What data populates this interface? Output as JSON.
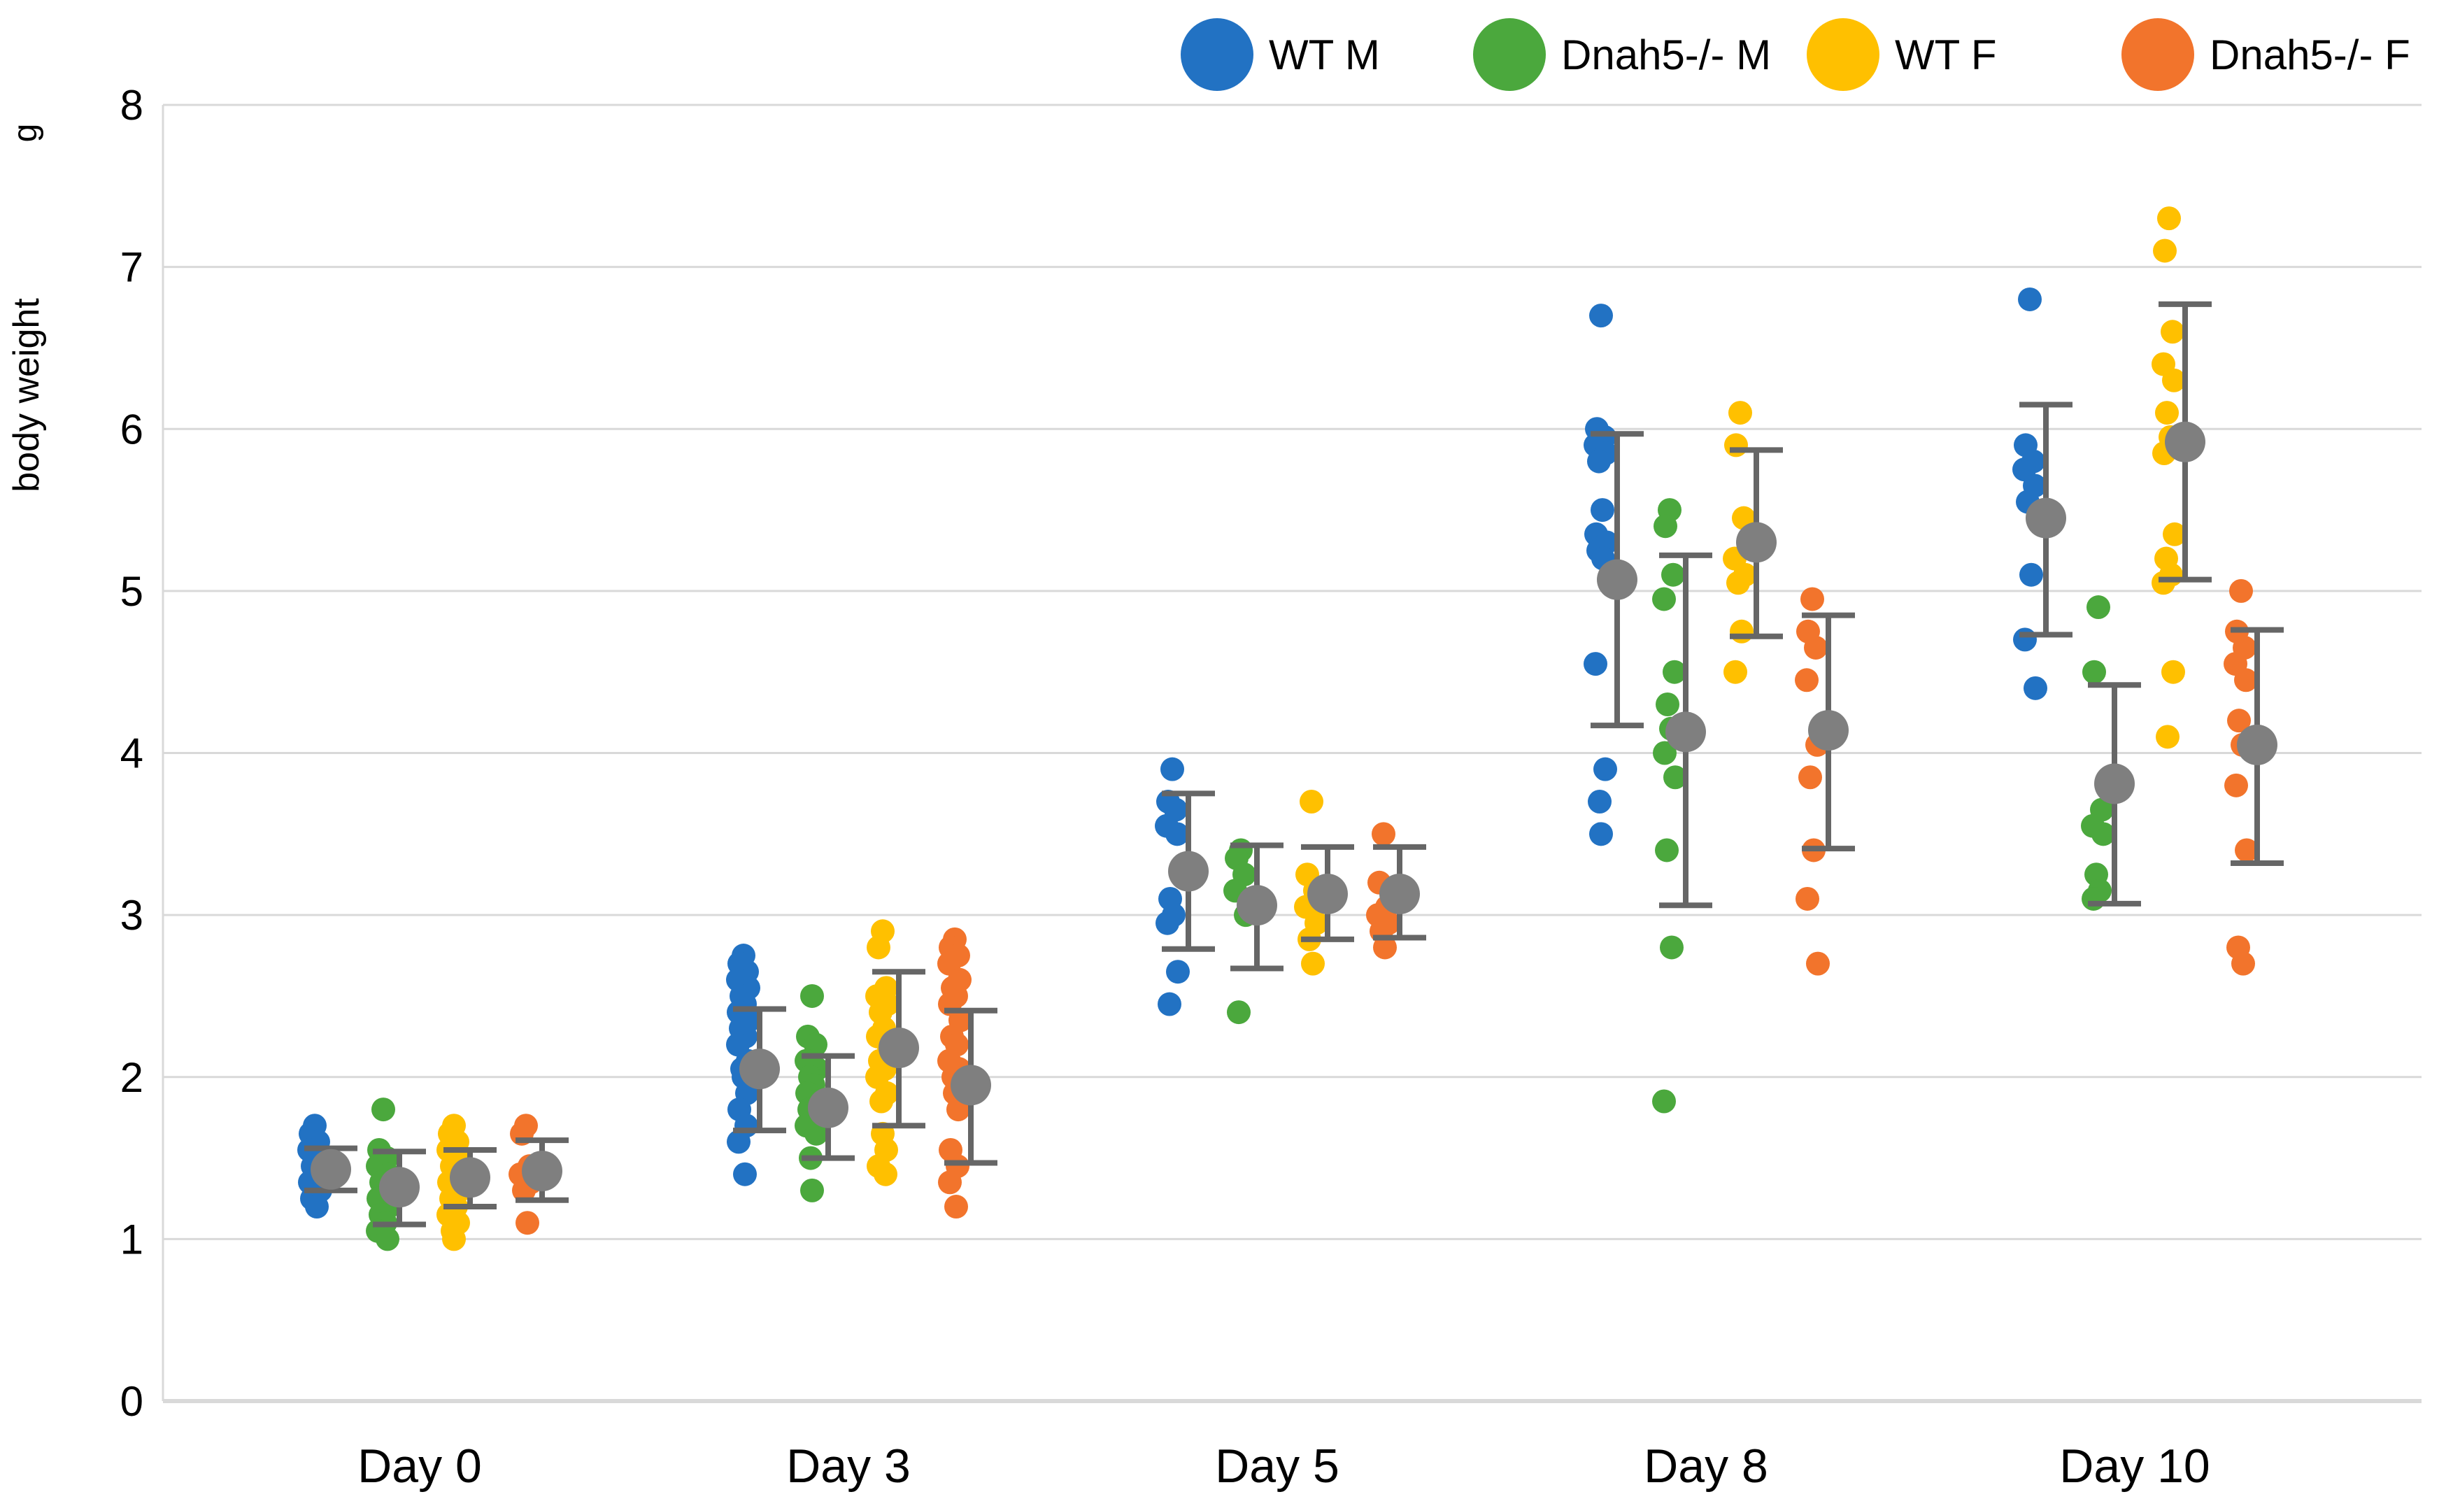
{
  "figure": {
    "y_unit": "g",
    "y_axis_title": "body weight"
  },
  "legend": {
    "items": [
      {
        "label": "WT M",
        "color": "#2272C3"
      },
      {
        "label": "Dnah5-/- M",
        "color": "#4BA83D"
      },
      {
        "label": "WT F",
        "color": "#FFC000"
      },
      {
        "label": "Dnah5-/- F",
        "color": "#F2742C"
      }
    ]
  },
  "chart_data": {
    "type": "scatter",
    "title": "",
    "xlabel": "",
    "ylabel": "body weight",
    "y_unit": "g",
    "ylim": [
      0,
      8
    ],
    "y_ticks": [
      0,
      1,
      2,
      3,
      4,
      5,
      6,
      7,
      8
    ],
    "grid": true,
    "legend_position": "top",
    "categories": [
      "Day 0",
      "Day 3",
      "Day 5",
      "Day 8",
      "Day 10"
    ],
    "mean_marker_color": "#7F7F7F",
    "error_bar_color": "#666666",
    "gridline_color": "#D9D9D9",
    "series": [
      {
        "name": "WT M",
        "color": "#2272C3",
        "points": [
          [
            1.7,
            1.65,
            1.6,
            1.55,
            1.5,
            1.45,
            1.4,
            1.35,
            1.3,
            1.25,
            1.2
          ],
          [
            2.75,
            2.7,
            2.65,
            2.6,
            2.55,
            2.5,
            2.45,
            2.4,
            2.35,
            2.3,
            2.25,
            2.2,
            2.1,
            2.05,
            2.0,
            1.9,
            1.8,
            1.7,
            1.6,
            1.4
          ],
          [
            3.9,
            3.7,
            3.65,
            3.55,
            3.5,
            3.1,
            3.0,
            2.95,
            2.65,
            2.45
          ],
          [
            6.7,
            6.0,
            5.95,
            5.9,
            5.85,
            5.8,
            5.5,
            5.35,
            5.3,
            5.25,
            5.2,
            4.55,
            3.9,
            3.7,
            3.5
          ],
          [
            6.8,
            5.9,
            5.8,
            5.75,
            5.65,
            5.55,
            5.1,
            4.7,
            4.4
          ]
        ],
        "mean": [
          1.43,
          2.05,
          3.27,
          5.07,
          5.45
        ],
        "err_low": [
          1.3,
          1.67,
          2.79,
          4.17,
          4.73
        ],
        "err_high": [
          1.56,
          2.42,
          3.75,
          5.97,
          6.15
        ]
      },
      {
        "name": "Dnah5-/- M",
        "color": "#4BA83D",
        "points": [
          [
            1.8,
            1.55,
            1.5,
            1.45,
            1.4,
            1.35,
            1.3,
            1.25,
            1.2,
            1.15,
            1.1,
            1.05,
            1.0
          ],
          [
            2.5,
            2.25,
            2.2,
            2.1,
            2.05,
            2.0,
            1.95,
            1.9,
            1.85,
            1.8,
            1.75,
            1.7,
            1.65,
            1.5,
            1.3
          ],
          [
            3.4,
            3.35,
            3.25,
            3.15,
            3.0,
            2.4
          ],
          [
            5.5,
            5.4,
            5.1,
            4.95,
            4.5,
            4.3,
            4.15,
            4.0,
            3.85,
            3.4,
            2.8,
            1.85
          ],
          [
            4.9,
            4.5,
            3.65,
            3.55,
            3.5,
            3.25,
            3.15,
            3.1
          ]
        ],
        "mean": [
          1.32,
          1.81,
          3.06,
          4.13,
          3.81
        ],
        "err_low": [
          1.09,
          1.5,
          2.67,
          3.06,
          3.07
        ],
        "err_high": [
          1.54,
          2.13,
          3.43,
          5.22,
          4.42
        ]
      },
      {
        "name": "WT F",
        "color": "#FFC000",
        "points": [
          [
            1.7,
            1.65,
            1.6,
            1.55,
            1.5,
            1.45,
            1.4,
            1.35,
            1.3,
            1.25,
            1.2,
            1.15,
            1.1,
            1.05,
            1.0
          ],
          [
            2.9,
            2.8,
            2.55,
            2.5,
            2.45,
            2.4,
            2.3,
            2.25,
            2.2,
            2.1,
            2.05,
            2.0,
            1.9,
            1.85,
            1.65,
            1.55,
            1.45,
            1.4
          ],
          [
            3.7,
            3.25,
            3.15,
            3.05,
            2.95,
            2.85,
            2.7
          ],
          [
            6.1,
            5.9,
            5.45,
            5.2,
            5.1,
            5.05,
            4.75,
            4.5
          ],
          [
            7.3,
            7.1,
            6.6,
            6.4,
            6.3,
            6.1,
            5.95,
            5.85,
            5.35,
            5.2,
            5.1,
            5.05,
            4.5,
            4.1
          ]
        ],
        "mean": [
          1.38,
          2.18,
          3.13,
          5.3,
          5.92
        ],
        "err_low": [
          1.2,
          1.7,
          2.85,
          4.72,
          5.07
        ],
        "err_high": [
          1.55,
          2.65,
          3.42,
          5.87,
          6.77
        ]
      },
      {
        "name": "Dnah5-/- F",
        "color": "#F2742C",
        "points": [
          [
            1.7,
            1.65,
            1.45,
            1.4,
            1.35,
            1.3,
            1.1
          ],
          [
            2.85,
            2.8,
            2.75,
            2.7,
            2.6,
            2.55,
            2.5,
            2.45,
            2.35,
            2.25,
            2.2,
            2.1,
            2.05,
            2.0,
            1.9,
            1.8,
            1.55,
            1.45,
            1.35,
            1.2
          ],
          [
            3.5,
            3.2,
            3.05,
            3.0,
            2.95,
            2.9,
            2.8
          ],
          [
            4.95,
            4.75,
            4.65,
            4.45,
            4.05,
            3.85,
            3.4,
            3.1,
            2.7
          ],
          [
            5.0,
            4.75,
            4.65,
            4.55,
            4.45,
            4.2,
            4.05,
            3.8,
            3.4,
            2.8,
            2.7
          ]
        ],
        "mean": [
          1.42,
          1.95,
          3.13,
          4.14,
          4.05
        ],
        "err_low": [
          1.24,
          1.47,
          2.86,
          3.41,
          3.32
        ],
        "err_high": [
          1.61,
          2.41,
          3.42,
          4.85,
          4.76
        ]
      }
    ]
  }
}
